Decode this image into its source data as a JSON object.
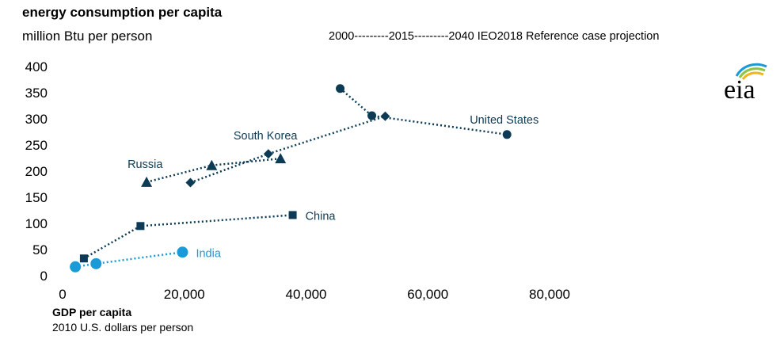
{
  "header": {
    "title": "energy consumption per capita",
    "subtitle": "million Btu per person",
    "note": "2000---------2015---------2040 IEO2018 Reference case projection"
  },
  "footer": {
    "xlabel": "GDP per capita",
    "xsub": "2010 U.S. dollars per person"
  },
  "logo": {
    "text": "eia"
  },
  "colors": {
    "dark": "#0d3b55",
    "india": "#1a9ad6"
  },
  "chart_data": {
    "type": "scatter",
    "title": "energy consumption per capita",
    "ylabel": "million Btu per person",
    "xlabel": "GDP per capita",
    "xlim": [
      0,
      80000
    ],
    "ylim": [
      0,
      400
    ],
    "xticks": [
      0,
      20000,
      40000,
      60000,
      80000
    ],
    "xtick_labels": [
      "0",
      "20,000",
      "40,000",
      "60,000",
      "80,000"
    ],
    "yticks": [
      0,
      50,
      100,
      150,
      200,
      250,
      300,
      350,
      400
    ],
    "ytick_labels": [
      "0",
      "50",
      "100",
      "150",
      "200",
      "250",
      "300",
      "350",
      "400"
    ],
    "grid": false,
    "series": [
      {
        "name": "United States",
        "marker": "circle",
        "color": "#0d3b55",
        "x": [
          45600,
          50800,
          73000
        ],
        "y": [
          358,
          306,
          270
        ]
      },
      {
        "name": "South Korea",
        "marker": "diamond",
        "color": "#0d3b55",
        "x": [
          21000,
          33800,
          53000
        ],
        "y": [
          178,
          233,
          305
        ]
      },
      {
        "name": "Russia",
        "marker": "triangle",
        "color": "#0d3b55",
        "x": [
          13800,
          24500,
          35800
        ],
        "y": [
          179,
          211,
          224
        ]
      },
      {
        "name": "China",
        "marker": "square",
        "color": "#0d3b55",
        "x": [
          3500,
          12800,
          37800
        ],
        "y": [
          33,
          95,
          116
        ]
      },
      {
        "name": "India",
        "marker": "circle",
        "color": "#1a9ad6",
        "x": [
          2100,
          5500,
          19700
        ],
        "y": [
          17,
          23,
          45
        ]
      }
    ]
  }
}
